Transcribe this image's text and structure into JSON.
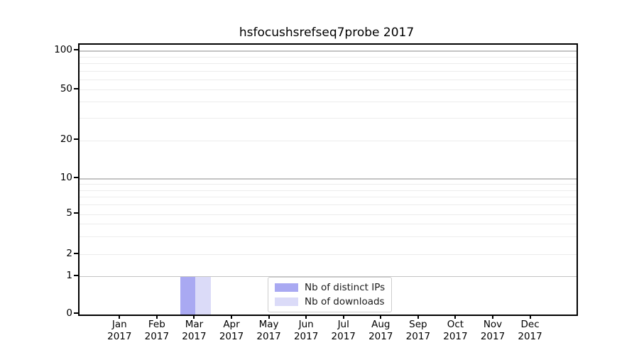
{
  "chart_data": {
    "type": "bar",
    "title": "hsfocushsrefseq7probe 2017",
    "categories": [
      "Jan",
      "Feb",
      "Mar",
      "Apr",
      "May",
      "Jun",
      "Jul",
      "Aug",
      "Sep",
      "Oct",
      "Nov",
      "Dec"
    ],
    "x_year": "2017",
    "series": [
      {
        "name": "Nb of distinct IPs",
        "color": "#a9a9f2",
        "values": [
          0,
          0,
          1,
          0,
          0,
          0,
          0,
          0,
          0,
          0,
          0,
          0
        ]
      },
      {
        "name": "Nb of downloads",
        "color": "#dbdbf8",
        "values": [
          0,
          0,
          1,
          0,
          0,
          0,
          0,
          0,
          0,
          0,
          0,
          0
        ]
      }
    ],
    "y_ticks": [
      0,
      1,
      2,
      5,
      10,
      20,
      50,
      100
    ],
    "y_scale": "symlog",
    "ylim": [
      0,
      120
    ],
    "grid": "horizontal",
    "legend_position": "lower center"
  }
}
